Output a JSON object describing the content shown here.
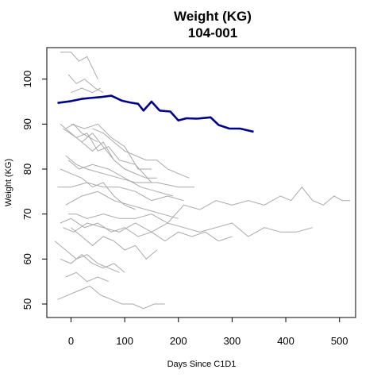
{
  "chart_data": {
    "type": "line",
    "title": "Weight (KG)",
    "subtitle": "104-001",
    "xlabel": "Days Since C1D1",
    "ylabel": "Weight (KG)",
    "xlim": [
      -45,
      530
    ],
    "ylim": [
      47,
      107
    ],
    "xticks": [
      0,
      100,
      200,
      300,
      400,
      500
    ],
    "yticks": [
      50,
      60,
      70,
      80,
      90,
      100
    ],
    "colors": {
      "background_series": "#a9a9a9",
      "highlight_series": "#00008b"
    },
    "highlight": {
      "name": "104-001",
      "x": [
        -25,
        0,
        20,
        35,
        55,
        75,
        95,
        110,
        125,
        135,
        150,
        165,
        185,
        200,
        215,
        235,
        260,
        275,
        295,
        315,
        340
      ],
      "y": [
        94.7,
        95.1,
        95.6,
        95.8,
        96.0,
        96.3,
        95.2,
        94.8,
        94.5,
        93.0,
        95.0,
        93.0,
        92.8,
        90.8,
        91.3,
        91.2,
        91.5,
        89.8,
        89.0,
        89.0,
        88.3
      ]
    },
    "series": [
      {
        "name": "s01",
        "x": [
          -20,
          0,
          15,
          30,
          50
        ],
        "y": [
          106,
          106,
          104,
          105,
          100
        ]
      },
      {
        "name": "s02",
        "x": [
          -5,
          10,
          25,
          45,
          60
        ],
        "y": [
          101,
          99,
          100,
          98,
          97
        ]
      },
      {
        "name": "s03",
        "x": [
          0,
          20,
          40,
          55
        ],
        "y": [
          97,
          98,
          97,
          98
        ]
      },
      {
        "name": "s04",
        "x": [
          -10,
          5,
          20,
          35,
          50
        ],
        "y": [
          89,
          90,
          88,
          87,
          86
        ]
      },
      {
        "name": "s05",
        "x": [
          -20,
          0,
          20,
          40,
          60,
          80,
          100,
          120
        ],
        "y": [
          90,
          88,
          86,
          88,
          85,
          82,
          80,
          79
        ]
      },
      {
        "name": "s06",
        "x": [
          -15,
          10,
          30,
          50,
          70,
          90,
          120,
          150
        ],
        "y": [
          89,
          87,
          88,
          84,
          85,
          82,
          81,
          77
        ]
      },
      {
        "name": "s07",
        "x": [
          0,
          25,
          50,
          75,
          100,
          125,
          150
        ],
        "y": [
          90,
          89,
          90,
          87,
          85,
          80,
          80
        ]
      },
      {
        "name": "s08",
        "x": [
          40,
          60,
          80,
          100,
          120,
          140,
          160,
          180,
          200,
          220
        ],
        "y": [
          89,
          88,
          86,
          84,
          83,
          82,
          82,
          80,
          79,
          78
        ]
      },
      {
        "name": "s09",
        "x": [
          20,
          40,
          60,
          80,
          100,
          120,
          140,
          160
        ],
        "y": [
          86,
          84,
          86,
          82,
          80,
          79,
          78,
          78
        ]
      },
      {
        "name": "s10",
        "x": [
          -10,
          10,
          30,
          60,
          90,
          120,
          160,
          200,
          230
        ],
        "y": [
          83,
          81,
          80,
          79,
          78,
          77,
          77,
          76,
          76
        ]
      },
      {
        "name": "s11",
        "x": [
          -5,
          15,
          40,
          70,
          100,
          130,
          160,
          190
        ],
        "y": [
          82,
          80,
          81,
          80,
          78,
          76,
          75,
          74
        ]
      },
      {
        "name": "s12",
        "x": [
          -20,
          0,
          20,
          40,
          60,
          80,
          100,
          120
        ],
        "y": [
          80,
          79,
          78,
          76,
          77,
          74,
          72,
          71
        ]
      },
      {
        "name": "s13",
        "x": [
          -25,
          0,
          30,
          60,
          90,
          120,
          150,
          180,
          210
        ],
        "y": [
          76,
          76,
          77,
          76,
          76,
          75,
          73,
          74,
          73
        ]
      },
      {
        "name": "s14",
        "x": [
          -10,
          20,
          50,
          80,
          110,
          140,
          170,
          200
        ],
        "y": [
          72,
          74,
          75,
          73,
          72,
          71,
          70,
          69
        ]
      },
      {
        "name": "s15",
        "x": [
          -5,
          10,
          30,
          60,
          90,
          120,
          150,
          180,
          210,
          240,
          270,
          300,
          330,
          360,
          390,
          410,
          430,
          450,
          470,
          490,
          505,
          520
        ],
        "y": [
          70,
          70,
          69,
          70,
          69,
          69,
          70,
          68,
          72,
          71,
          73,
          72,
          73,
          72,
          74,
          73,
          76,
          73,
          72,
          74,
          73,
          73
        ]
      },
      {
        "name": "s16",
        "x": [
          -15,
          5,
          30,
          60,
          90,
          120,
          150,
          180,
          210,
          240,
          270,
          300,
          330,
          360,
          390,
          420,
          450
        ],
        "y": [
          67,
          66,
          68,
          67,
          66,
          68,
          66,
          68,
          67,
          66,
          67,
          68,
          65,
          67,
          66,
          66,
          67
        ]
      },
      {
        "name": "s17",
        "x": [
          -20,
          0,
          25,
          50,
          75,
          100,
          125,
          150,
          175,
          200,
          225,
          250,
          275,
          300
        ],
        "y": [
          68,
          69,
          67,
          68,
          66,
          67,
          65,
          66,
          64,
          66,
          65,
          66,
          64,
          65
        ]
      },
      {
        "name": "s18",
        "x": [
          0,
          20,
          40,
          60,
          80,
          100,
          120,
          140,
          160
        ],
        "y": [
          67,
          65,
          63,
          65,
          64,
          62,
          63,
          60,
          62
        ]
      },
      {
        "name": "s19",
        "x": [
          -30,
          -10,
          10,
          30,
          50,
          70,
          90
        ],
        "y": [
          64,
          62,
          60,
          61,
          59,
          58,
          57
        ]
      },
      {
        "name": "s20",
        "x": [
          -20,
          0,
          20,
          40,
          60,
          80,
          100
        ],
        "y": [
          60,
          59,
          61,
          59,
          58,
          59,
          57
        ]
      },
      {
        "name": "s21",
        "x": [
          -10,
          10,
          30,
          50,
          70
        ],
        "y": [
          56,
          57,
          55,
          56,
          55
        ]
      },
      {
        "name": "s22",
        "x": [
          -25,
          -5,
          15,
          35,
          55,
          75,
          95,
          115,
          135,
          155,
          175
        ],
        "y": [
          51,
          52,
          53,
          54,
          52,
          51,
          50,
          50,
          49,
          50,
          50
        ]
      }
    ]
  }
}
